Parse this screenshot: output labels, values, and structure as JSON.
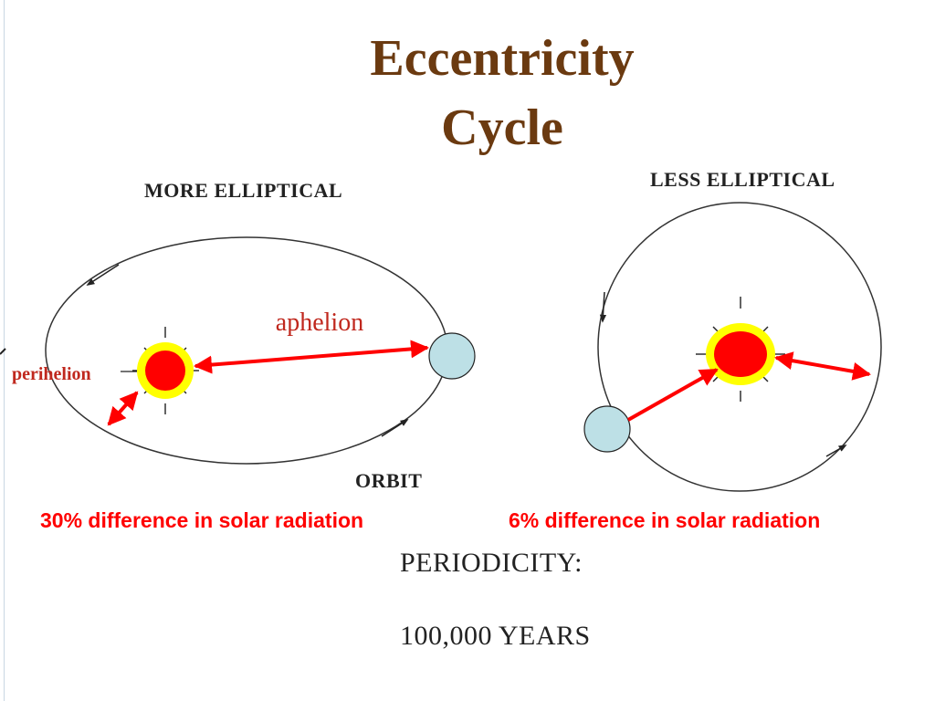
{
  "title": {
    "line1": "Eccentricity",
    "line2": "Cycle"
  },
  "left_diagram": {
    "heading": "MORE ELLIPTICAL",
    "orbit_label": "ORBIT",
    "aphelion_label": "aphelion",
    "perihelion_label": "perihelion",
    "caption": "30% difference in solar radiation"
  },
  "right_diagram": {
    "heading": "LESS ELLIPTICAL",
    "caption": "6% difference in solar radiation"
  },
  "periodicity": {
    "label": "PERIODICITY:",
    "value": "100,000 YEARS"
  },
  "colors": {
    "title": "#6b3a10",
    "arrows": "#ff0000",
    "sun_core": "#ff0000",
    "sun_halo": "#ffff00",
    "planet": "#bde0e6",
    "orbit": "#333333",
    "caption": "#ff0000"
  }
}
